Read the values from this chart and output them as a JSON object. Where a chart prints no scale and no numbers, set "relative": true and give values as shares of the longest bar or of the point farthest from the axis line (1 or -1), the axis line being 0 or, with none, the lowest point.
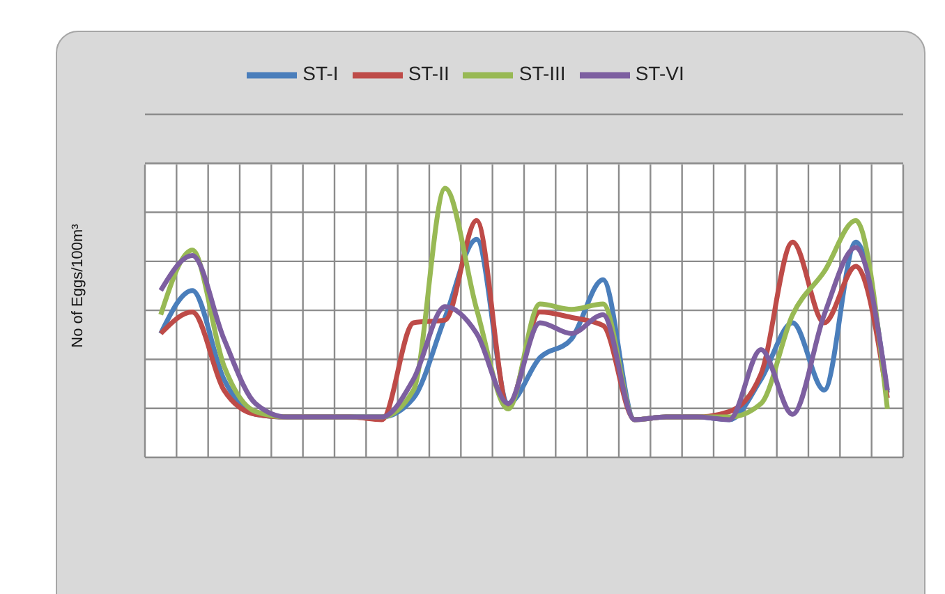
{
  "chart_data": {
    "type": "line",
    "ylabel": "No of Eggs/100m³",
    "relative": true,
    "grid": true,
    "legend": "top",
    "categories": [
      null,
      null,
      null,
      null,
      null,
      null,
      null,
      null,
      null,
      null,
      null,
      null,
      null,
      null,
      null,
      null,
      null,
      null,
      null,
      null,
      null,
      null,
      null,
      null
    ],
    "series": [
      {
        "name": "ST-I",
        "color": "#4a7ebb",
        "values": [
          0.46,
          0.62,
          0.29,
          0.16,
          0.15,
          0.15,
          0.15,
          0.15,
          0.22,
          0.52,
          0.81,
          0.2,
          0.37,
          0.44,
          0.66,
          0.14,
          0.15,
          0.15,
          0.14,
          0.29,
          0.5,
          0.25,
          0.8,
          0.24
        ]
      },
      {
        "name": "ST-II",
        "color": "#be4b48",
        "values": [
          0.46,
          0.54,
          0.25,
          0.16,
          0.15,
          0.15,
          0.15,
          0.14,
          0.5,
          0.51,
          0.88,
          0.19,
          0.54,
          0.52,
          0.49,
          0.14,
          0.15,
          0.15,
          0.17,
          0.31,
          0.8,
          0.5,
          0.71,
          0.22
        ]
      },
      {
        "name": "ST-III",
        "color": "#98b954",
        "values": [
          0.53,
          0.77,
          0.34,
          0.17,
          0.15,
          0.15,
          0.15,
          0.15,
          0.25,
          1,
          0.55,
          0.18,
          0.57,
          0.55,
          0.57,
          0.14,
          0.15,
          0.15,
          0.15,
          0.2,
          0.53,
          0.69,
          0.88,
          0.18
        ]
      },
      {
        "name": "ST-VI",
        "color": "#7d5fa0",
        "values": [
          0.62,
          0.75,
          0.44,
          0.2,
          0.15,
          0.15,
          0.15,
          0.15,
          0.29,
          0.56,
          0.46,
          0.2,
          0.5,
          0.46,
          0.53,
          0.14,
          0.15,
          0.15,
          0.14,
          0.4,
          0.16,
          0.53,
          0.78,
          0.25
        ]
      }
    ]
  }
}
